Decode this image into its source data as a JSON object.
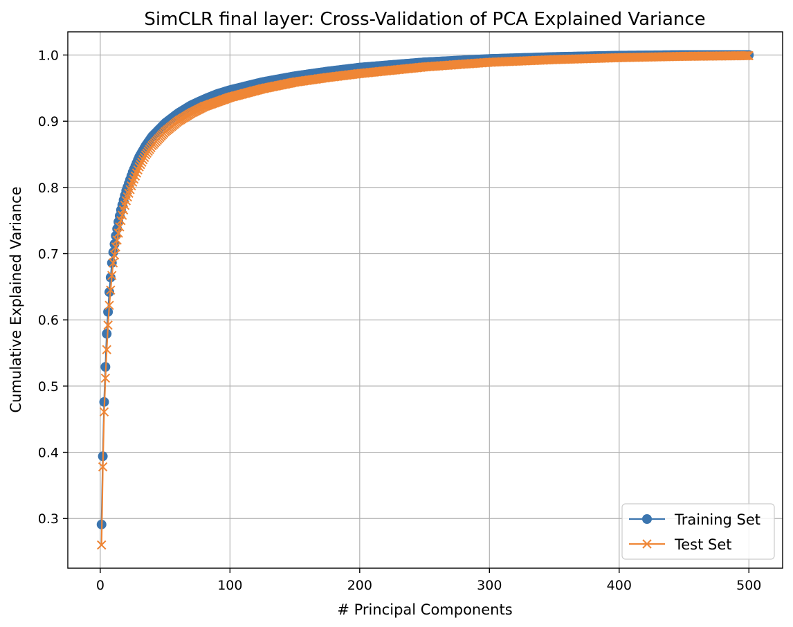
{
  "chart_data": {
    "type": "line",
    "title": "SimCLR final layer: Cross-Validation of PCA Explained Variance",
    "xlabel": "# Principal Components",
    "ylabel": "Cumulative Explained Variance",
    "xlim": [
      -25,
      526
    ],
    "ylim": [
      0.225,
      1.035
    ],
    "xticks": [
      0,
      100,
      200,
      300,
      400,
      500
    ],
    "xtick_labels": [
      "0",
      "100",
      "200",
      "300",
      "400",
      "500"
    ],
    "yticks": [
      0.3,
      0.4,
      0.5,
      0.6,
      0.7,
      0.8,
      0.9,
      1.0
    ],
    "ytick_labels": [
      "0.3",
      "0.4",
      "0.5",
      "0.6",
      "0.7",
      "0.8",
      "0.9",
      "1.0"
    ],
    "grid": true,
    "legend_position": "lower-right",
    "series": [
      {
        "name": "Training Set",
        "marker": "circle",
        "color": "#3b75af",
        "x": [
          1,
          2,
          3,
          4,
          5,
          6,
          7,
          8,
          9,
          10,
          12,
          14,
          16,
          18,
          20,
          25,
          30,
          35,
          40,
          50,
          60,
          70,
          80,
          90,
          100,
          125,
          150,
          175,
          200,
          250,
          300,
          350,
          400,
          450,
          500
        ],
        "y": [
          0.291,
          0.394,
          0.476,
          0.529,
          0.579,
          0.612,
          0.642,
          0.664,
          0.686,
          0.702,
          0.727,
          0.748,
          0.766,
          0.781,
          0.795,
          0.823,
          0.846,
          0.863,
          0.877,
          0.897,
          0.912,
          0.924,
          0.933,
          0.941,
          0.947,
          0.959,
          0.968,
          0.975,
          0.981,
          0.989,
          0.994,
          0.997,
          0.999,
          1.0,
          1.0
        ]
      },
      {
        "name": "Test Set",
        "marker": "x",
        "color": "#ef8636",
        "x": [
          1,
          2,
          3,
          4,
          5,
          6,
          7,
          8,
          9,
          10,
          12,
          14,
          16,
          18,
          20,
          25,
          30,
          35,
          40,
          50,
          60,
          70,
          80,
          90,
          100,
          125,
          150,
          175,
          200,
          250,
          300,
          350,
          400,
          450,
          500
        ],
        "y": [
          0.26,
          0.378,
          0.461,
          0.512,
          0.555,
          0.592,
          0.622,
          0.645,
          0.667,
          0.686,
          0.71,
          0.731,
          0.75,
          0.766,
          0.78,
          0.808,
          0.831,
          0.849,
          0.863,
          0.884,
          0.9,
          0.912,
          0.922,
          0.929,
          0.936,
          0.949,
          0.959,
          0.966,
          0.972,
          0.982,
          0.989,
          0.993,
          0.996,
          0.998,
          0.999
        ]
      }
    ]
  }
}
